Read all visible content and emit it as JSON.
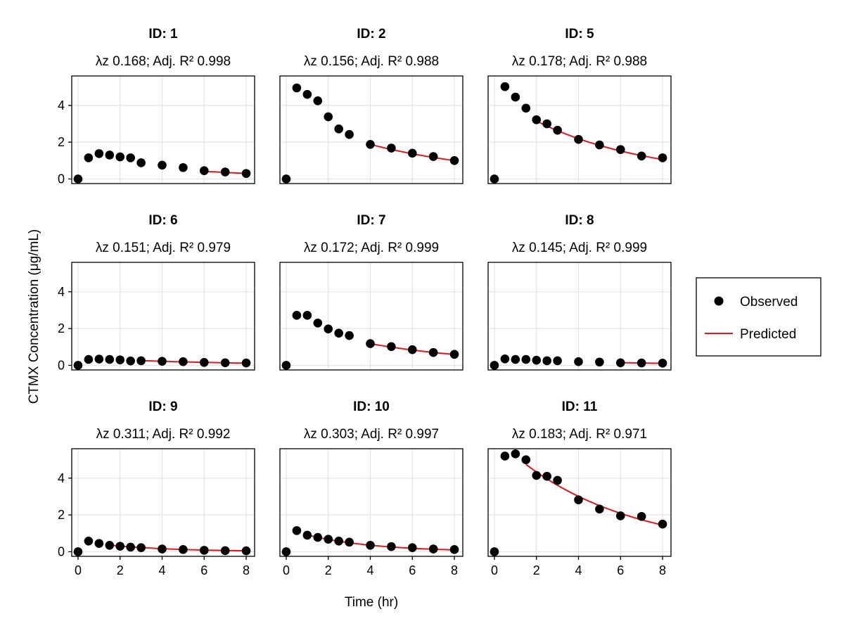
{
  "chart_data": {
    "type": "scatter",
    "xlabel": "Time (hr)",
    "ylabel": "CTMX Concentration (μg/mL)",
    "xlim": [
      -0.3,
      8.4
    ],
    "ylim": [
      -0.25,
      5.6
    ],
    "xticks": [
      0,
      2,
      4,
      6,
      8
    ],
    "yticks": [
      0,
      2,
      4
    ],
    "grid": true,
    "legend": {
      "placement": "right",
      "observed_label": "Observed",
      "predicted_label": "Predicted",
      "observed_color": "#000000",
      "predicted_color": "#e8151b"
    },
    "panels": [
      {
        "title": "ID: 1",
        "subtitle": "λz 0.168; Adj. R² 0.998",
        "observed": {
          "x": [
            0,
            0.5,
            1,
            1.5,
            2,
            2.5,
            3,
            4,
            5,
            6,
            7,
            8
          ],
          "y": [
            0,
            1.15,
            1.38,
            1.3,
            1.2,
            1.15,
            0.88,
            0.75,
            0.62,
            0.45,
            0.38,
            0.3
          ]
        },
        "predicted": {
          "x": [
            6,
            8
          ],
          "y": [
            0.42,
            0.3
          ]
        }
      },
      {
        "title": "ID: 2",
        "subtitle": "λz 0.156; Adj. R² 0.988",
        "observed": {
          "x": [
            0,
            0.5,
            1,
            1.5,
            2,
            2.5,
            3,
            4,
            5,
            6,
            7,
            8
          ],
          "y": [
            0,
            4.95,
            4.6,
            4.25,
            3.38,
            2.72,
            2.42,
            1.88,
            1.68,
            1.4,
            1.22,
            1.0
          ]
        },
        "predicted": {
          "x": [
            4,
            8
          ],
          "y": [
            1.88,
            1.0
          ]
        }
      },
      {
        "title": "ID: 5",
        "subtitle": "λz 0.178; Adj. R² 0.988",
        "observed": {
          "x": [
            0,
            0.5,
            1,
            1.5,
            2,
            2.5,
            3,
            4,
            5,
            6,
            7,
            8
          ],
          "y": [
            0,
            5.02,
            4.45,
            3.85,
            3.22,
            3.0,
            2.65,
            2.15,
            1.85,
            1.6,
            1.25,
            1.15
          ]
        },
        "predicted": {
          "x": [
            2,
            8
          ],
          "y": [
            3.15,
            1.06
          ]
        }
      },
      {
        "title": "ID: 6",
        "subtitle": "λz 0.151; Adj. R² 0.979",
        "observed": {
          "x": [
            0,
            0.5,
            1,
            1.5,
            2,
            2.5,
            3,
            4,
            5,
            6,
            7,
            8
          ],
          "y": [
            0,
            0.32,
            0.34,
            0.32,
            0.3,
            0.24,
            0.25,
            0.22,
            0.2,
            0.16,
            0.14,
            0.13
          ]
        },
        "predicted": {
          "x": [
            3,
            8
          ],
          "y": [
            0.26,
            0.12
          ]
        }
      },
      {
        "title": "ID: 7",
        "subtitle": "λz 0.172; Adj. R² 0.999",
        "observed": {
          "x": [
            0,
            0.5,
            1,
            1.5,
            2,
            2.5,
            3,
            4,
            5,
            6,
            7,
            8
          ],
          "y": [
            0,
            2.72,
            2.72,
            2.3,
            1.98,
            1.75,
            1.62,
            1.18,
            1.02,
            0.85,
            0.7,
            0.6
          ]
        },
        "predicted": {
          "x": [
            4,
            8
          ],
          "y": [
            1.18,
            0.59
          ]
        }
      },
      {
        "title": "ID: 8",
        "subtitle": "λz 0.145; Adj. R² 0.999",
        "observed": {
          "x": [
            0,
            0.5,
            1,
            1.5,
            2,
            2.5,
            3,
            4,
            5,
            6,
            7,
            8
          ],
          "y": [
            0,
            0.35,
            0.32,
            0.32,
            0.28,
            0.25,
            0.25,
            0.2,
            0.18,
            0.14,
            0.13,
            0.12
          ]
        },
        "predicted": {
          "x": [
            6,
            8
          ],
          "y": [
            0.15,
            0.11
          ]
        }
      },
      {
        "title": "ID: 9",
        "subtitle": "λz 0.311; Adj. R² 0.992",
        "observed": {
          "x": [
            0,
            0.5,
            1,
            1.5,
            2,
            2.5,
            3,
            4,
            5,
            6,
            7,
            8
          ],
          "y": [
            0,
            0.58,
            0.45,
            0.35,
            0.3,
            0.25,
            0.22,
            0.15,
            0.12,
            0.08,
            0.06,
            0.05
          ]
        },
        "predicted": {
          "x": [
            1.5,
            8
          ],
          "y": [
            0.36,
            0.05
          ]
        }
      },
      {
        "title": "ID: 10",
        "subtitle": "λz 0.303; Adj. R² 0.997",
        "observed": {
          "x": [
            0,
            0.5,
            1,
            1.5,
            2,
            2.5,
            3,
            4,
            5,
            6,
            7,
            8
          ],
          "y": [
            0,
            1.15,
            0.9,
            0.78,
            0.68,
            0.58,
            0.52,
            0.35,
            0.28,
            0.22,
            0.15,
            0.12
          ]
        },
        "predicted": {
          "x": [
            1,
            8
          ],
          "y": [
            0.92,
            0.1
          ]
        }
      },
      {
        "title": "ID: 11",
        "subtitle": "λz 0.183; Adj. R² 0.971",
        "observed": {
          "x": [
            0,
            0.5,
            1,
            1.5,
            2,
            2.5,
            3,
            4,
            5,
            6,
            7,
            8
          ],
          "y": [
            0,
            5.2,
            5.32,
            5.0,
            4.15,
            4.1,
            3.88,
            2.82,
            2.32,
            1.95,
            1.92,
            1.5
          ]
        },
        "predicted": {
          "x": [
            1.5,
            8
          ],
          "y": [
            4.75,
            1.45
          ]
        }
      }
    ]
  }
}
